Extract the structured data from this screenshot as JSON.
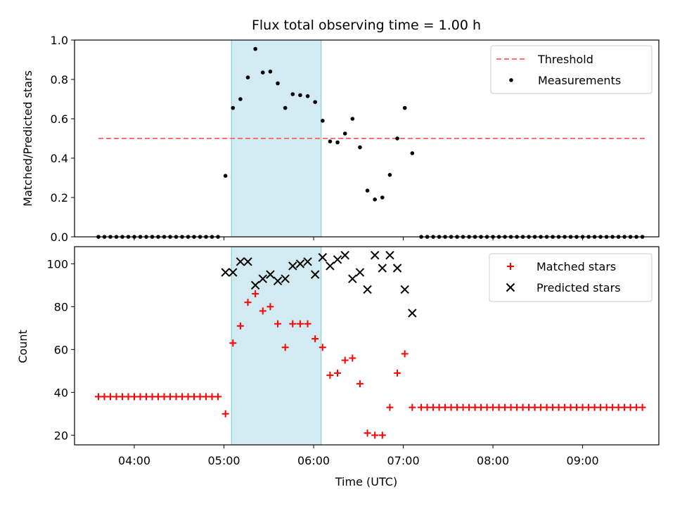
{
  "chart_data": [
    {
      "type": "scatter",
      "title": "Flux total observing time = 1.00 h",
      "xlabel": "",
      "ylabel": "Matched/Predicted stars",
      "ylim": [
        0,
        1.0
      ],
      "yticks": [
        "0.0",
        "0.2",
        "0.4",
        "0.6",
        "0.8",
        "1.0"
      ],
      "xticks": [],
      "shaded_interval": [
        "05:05",
        "06:05"
      ],
      "shade_color": "#add8e6",
      "legend_position": "top-right",
      "threshold": {
        "name": "Threshold",
        "value": 0.5,
        "x_range": [
          "03:36",
          "09:42"
        ],
        "color": "#ff7070"
      },
      "series": [
        {
          "name": "Measurements",
          "color": "#000000",
          "points": [
            [
              "03:36",
              0
            ],
            [
              "03:40",
              0
            ],
            [
              "03:44",
              0
            ],
            [
              "03:48",
              0
            ],
            [
              "03:52",
              0
            ],
            [
              "03:56",
              0
            ],
            [
              "04:00",
              0
            ],
            [
              "04:04",
              0
            ],
            [
              "04:08",
              0
            ],
            [
              "04:12",
              0
            ],
            [
              "04:16",
              0
            ],
            [
              "04:20",
              0
            ],
            [
              "04:24",
              0
            ],
            [
              "04:28",
              0
            ],
            [
              "04:32",
              0
            ],
            [
              "04:36",
              0
            ],
            [
              "04:40",
              0
            ],
            [
              "04:44",
              0
            ],
            [
              "04:48",
              0
            ],
            [
              "04:52",
              0
            ],
            [
              "04:56",
              0
            ],
            [
              "05:01",
              0.31
            ],
            [
              "05:06",
              0.655
            ],
            [
              "05:11",
              0.7
            ],
            [
              "05:16",
              0.81
            ],
            [
              "05:21",
              0.955
            ],
            [
              "05:26",
              0.835
            ],
            [
              "05:31",
              0.84
            ],
            [
              "05:36",
              0.78
            ],
            [
              "05:41",
              0.655
            ],
            [
              "05:46",
              0.725
            ],
            [
              "05:51",
              0.72
            ],
            [
              "05:56",
              0.715
            ],
            [
              "06:01",
              0.685
            ],
            [
              "06:06",
              0.59
            ],
            [
              "06:11",
              0.485
            ],
            [
              "06:16",
              0.48
            ],
            [
              "06:21",
              0.525
            ],
            [
              "06:26",
              0.6
            ],
            [
              "06:31",
              0.455
            ],
            [
              "06:36",
              0.235
            ],
            [
              "06:41",
              0.19
            ],
            [
              "06:46",
              0.2
            ],
            [
              "06:51",
              0.315
            ],
            [
              "06:56",
              0.5
            ],
            [
              "07:01",
              0.655
            ],
            [
              "07:06",
              0.425
            ],
            [
              "07:12",
              0
            ],
            [
              "07:16",
              0
            ],
            [
              "07:20",
              0
            ],
            [
              "07:24",
              0
            ],
            [
              "07:28",
              0
            ],
            [
              "07:32",
              0
            ],
            [
              "07:36",
              0
            ],
            [
              "07:40",
              0
            ],
            [
              "07:44",
              0
            ],
            [
              "07:48",
              0
            ],
            [
              "07:52",
              0
            ],
            [
              "07:56",
              0
            ],
            [
              "08:00",
              0
            ],
            [
              "08:04",
              0
            ],
            [
              "08:08",
              0
            ],
            [
              "08:12",
              0
            ],
            [
              "08:16",
              0
            ],
            [
              "08:20",
              0
            ],
            [
              "08:24",
              0
            ],
            [
              "08:28",
              0
            ],
            [
              "08:32",
              0
            ],
            [
              "08:36",
              0
            ],
            [
              "08:40",
              0
            ],
            [
              "08:44",
              0
            ],
            [
              "08:48",
              0
            ],
            [
              "08:52",
              0
            ],
            [
              "08:56",
              0
            ],
            [
              "09:00",
              0
            ],
            [
              "09:04",
              0
            ],
            [
              "09:08",
              0
            ],
            [
              "09:12",
              0
            ],
            [
              "09:16",
              0
            ],
            [
              "09:20",
              0
            ],
            [
              "09:24",
              0
            ],
            [
              "09:28",
              0
            ],
            [
              "09:32",
              0
            ],
            [
              "09:36",
              0
            ],
            [
              "09:40",
              0
            ]
          ]
        }
      ]
    },
    {
      "type": "scatter",
      "title": "",
      "xlabel": "Time (UTC)",
      "ylabel": "Count",
      "ylim": [
        15.5,
        108
      ],
      "yticks": [
        "20",
        "40",
        "60",
        "80",
        "100"
      ],
      "xticks": [
        "04:00",
        "05:00",
        "06:00",
        "07:00",
        "08:00",
        "09:00"
      ],
      "shaded_interval": [
        "05:05",
        "06:05"
      ],
      "shade_color": "#add8e6",
      "legend_position": "top-right",
      "series": [
        {
          "name": "Matched stars",
          "color": "#ff0000",
          "marker": "plus",
          "points": [
            [
              "03:36",
              38
            ],
            [
              "03:40",
              38
            ],
            [
              "03:44",
              38
            ],
            [
              "03:48",
              38
            ],
            [
              "03:52",
              38
            ],
            [
              "03:56",
              38
            ],
            [
              "04:00",
              38
            ],
            [
              "04:04",
              38
            ],
            [
              "04:08",
              38
            ],
            [
              "04:12",
              38
            ],
            [
              "04:16",
              38
            ],
            [
              "04:20",
              38
            ],
            [
              "04:24",
              38
            ],
            [
              "04:28",
              38
            ],
            [
              "04:32",
              38
            ],
            [
              "04:36",
              38
            ],
            [
              "04:40",
              38
            ],
            [
              "04:44",
              38
            ],
            [
              "04:48",
              38
            ],
            [
              "04:52",
              38
            ],
            [
              "04:56",
              38
            ],
            [
              "05:01",
              30
            ],
            [
              "05:06",
              63
            ],
            [
              "05:11",
              71
            ],
            [
              "05:16",
              82
            ],
            [
              "05:21",
              86
            ],
            [
              "05:26",
              78
            ],
            [
              "05:31",
              80
            ],
            [
              "05:36",
              72
            ],
            [
              "05:41",
              61
            ],
            [
              "05:46",
              72
            ],
            [
              "05:51",
              72
            ],
            [
              "05:56",
              72
            ],
            [
              "06:01",
              65
            ],
            [
              "06:06",
              61
            ],
            [
              "06:11",
              48
            ],
            [
              "06:16",
              49
            ],
            [
              "06:21",
              55
            ],
            [
              "06:26",
              56
            ],
            [
              "06:31",
              44
            ],
            [
              "06:36",
              21
            ],
            [
              "06:41",
              20
            ],
            [
              "06:46",
              20
            ],
            [
              "06:51",
              33
            ],
            [
              "06:56",
              49
            ],
            [
              "07:01",
              58
            ],
            [
              "07:06",
              33
            ],
            [
              "07:12",
              33
            ],
            [
              "07:16",
              33
            ],
            [
              "07:20",
              33
            ],
            [
              "07:24",
              33
            ],
            [
              "07:28",
              33
            ],
            [
              "07:32",
              33
            ],
            [
              "07:36",
              33
            ],
            [
              "07:40",
              33
            ],
            [
              "07:44",
              33
            ],
            [
              "07:48",
              33
            ],
            [
              "07:52",
              33
            ],
            [
              "07:56",
              33
            ],
            [
              "08:00",
              33
            ],
            [
              "08:04",
              33
            ],
            [
              "08:08",
              33
            ],
            [
              "08:12",
              33
            ],
            [
              "08:16",
              33
            ],
            [
              "08:20",
              33
            ],
            [
              "08:24",
              33
            ],
            [
              "08:28",
              33
            ],
            [
              "08:32",
              33
            ],
            [
              "08:36",
              33
            ],
            [
              "08:40",
              33
            ],
            [
              "08:44",
              33
            ],
            [
              "08:48",
              33
            ],
            [
              "08:52",
              33
            ],
            [
              "08:56",
              33
            ],
            [
              "09:00",
              33
            ],
            [
              "09:04",
              33
            ],
            [
              "09:08",
              33
            ],
            [
              "09:12",
              33
            ],
            [
              "09:16",
              33
            ],
            [
              "09:20",
              33
            ],
            [
              "09:24",
              33
            ],
            [
              "09:28",
              33
            ],
            [
              "09:32",
              33
            ],
            [
              "09:36",
              33
            ],
            [
              "09:40",
              33
            ]
          ]
        },
        {
          "name": "Predicted stars",
          "color": "#000000",
          "marker": "x",
          "points": [
            [
              "05:01",
              96
            ],
            [
              "05:06",
              96
            ],
            [
              "05:11",
              101
            ],
            [
              "05:16",
              101
            ],
            [
              "05:21",
              90
            ],
            [
              "05:26",
              93
            ],
            [
              "05:31",
              95
            ],
            [
              "05:36",
              92
            ],
            [
              "05:41",
              93
            ],
            [
              "05:46",
              99
            ],
            [
              "05:51",
              100
            ],
            [
              "05:56",
              101
            ],
            [
              "06:01",
              95
            ],
            [
              "06:06",
              103
            ],
            [
              "06:11",
              99
            ],
            [
              "06:16",
              102
            ],
            [
              "06:21",
              104
            ],
            [
              "06:26",
              93
            ],
            [
              "06:31",
              96
            ],
            [
              "06:36",
              88
            ],
            [
              "06:41",
              104
            ],
            [
              "06:46",
              98
            ],
            [
              "06:51",
              104
            ],
            [
              "06:56",
              98
            ],
            [
              "07:01",
              88
            ],
            [
              "07:06",
              77
            ]
          ]
        }
      ]
    }
  ]
}
